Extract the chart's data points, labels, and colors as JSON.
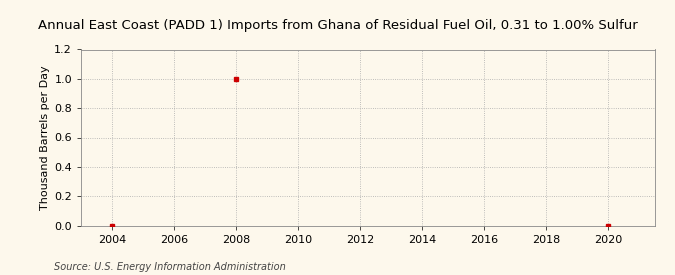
{
  "title": "Annual East Coast (PADD 1) Imports from Ghana of Residual Fuel Oil, 0.31 to 1.00% Sulfur",
  "ylabel": "Thousand Barrels per Day",
  "source": "Source: U.S. Energy Information Administration",
  "xlim": [
    2003.0,
    2021.5
  ],
  "ylim": [
    0.0,
    1.2
  ],
  "xticks": [
    2004,
    2006,
    2008,
    2010,
    2012,
    2014,
    2016,
    2018,
    2020
  ],
  "yticks": [
    0.0,
    0.2,
    0.4,
    0.6,
    0.8,
    1.0,
    1.2
  ],
  "data_x": [
    2004,
    2008,
    2020
  ],
  "data_y": [
    0.0,
    1.0,
    0.0
  ],
  "marker_color": "#cc0000",
  "marker": "s",
  "marker_size": 3,
  "bg_color": "#fdf8ec",
  "grid_color": "#aaaaaa",
  "title_fontsize": 9.5,
  "label_fontsize": 8,
  "tick_fontsize": 8,
  "source_fontsize": 7
}
